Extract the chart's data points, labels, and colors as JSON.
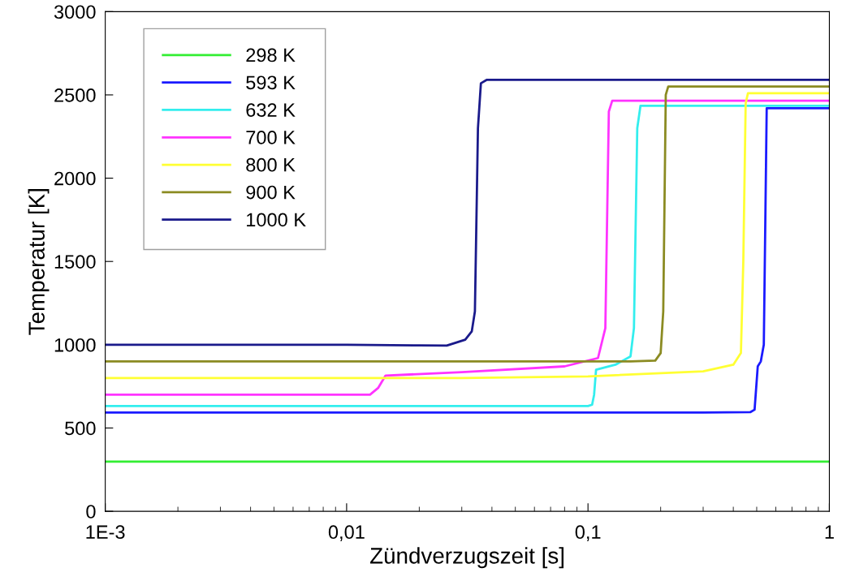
{
  "chart_data": {
    "type": "line",
    "xlabel": "Zündverzugszeit [s]",
    "ylabel": "Temperatur [K]",
    "log": "x",
    "xlim": [
      0.001,
      1
    ],
    "xticks": [
      {
        "value": 0.001,
        "label": "1E-3"
      },
      {
        "value": 0.01,
        "label": "0,01"
      },
      {
        "value": 0.1,
        "label": "0,1"
      },
      1
    ],
    "ylim": [
      0,
      3000
    ],
    "yticks": [
      0,
      500,
      1000,
      1500,
      2000,
      2500,
      3000
    ],
    "grid": false,
    "legend": "top left",
    "marker": "none",
    "line_style": "solid",
    "series": [
      {
        "name": "298 K",
        "color": "#33ee33",
        "x": [
          0.001,
          1
        ],
        "values": [
          298,
          298
        ]
      },
      {
        "name": "593 K",
        "color": "#1a1aff",
        "x": [
          0.001,
          0.3,
          0.47,
          0.49,
          0.505,
          0.52,
          0.535,
          0.55,
          0.6,
          1
        ],
        "values": [
          593,
          593,
          595,
          610,
          870,
          900,
          1000,
          2420,
          2420,
          2420
        ]
      },
      {
        "name": "632 K",
        "color": "#33eeee",
        "x": [
          0.001,
          0.1,
          0.104,
          0.106,
          0.108,
          0.13,
          0.15,
          0.155,
          0.16,
          0.165,
          1
        ],
        "values": [
          632,
          632,
          640,
          700,
          850,
          880,
          930,
          1100,
          2300,
          2435,
          2435
        ]
      },
      {
        "name": "700 K",
        "color": "#ff33ff",
        "x": [
          0.001,
          0.0125,
          0.0135,
          0.0145,
          0.03,
          0.08,
          0.11,
          0.118,
          0.122,
          0.126,
          1
        ],
        "values": [
          700,
          700,
          740,
          815,
          835,
          870,
          920,
          1100,
          2400,
          2465,
          2465
        ]
      },
      {
        "name": "800 K",
        "color": "#ffff33",
        "x": [
          0.001,
          0.03,
          0.1,
          0.3,
          0.4,
          0.43,
          0.44,
          0.45,
          0.46,
          1
        ],
        "values": [
          800,
          800,
          810,
          840,
          880,
          950,
          1500,
          2450,
          2510,
          2510
        ]
      },
      {
        "name": "900 K",
        "color": "#8b8b22",
        "x": [
          0.001,
          0.15,
          0.19,
          0.2,
          0.205,
          0.21,
          0.215,
          1
        ],
        "values": [
          900,
          900,
          905,
          950,
          1200,
          2500,
          2550,
          2550
        ]
      },
      {
        "name": "1000 K",
        "color": "#1a1a8b",
        "x": [
          0.001,
          0.01,
          0.02,
          0.026,
          0.031,
          0.033,
          0.034,
          0.035,
          0.036,
          0.038,
          1
        ],
        "values": [
          1000,
          1000,
          996,
          995,
          1030,
          1080,
          1200,
          2300,
          2570,
          2590,
          2590
        ]
      }
    ]
  }
}
